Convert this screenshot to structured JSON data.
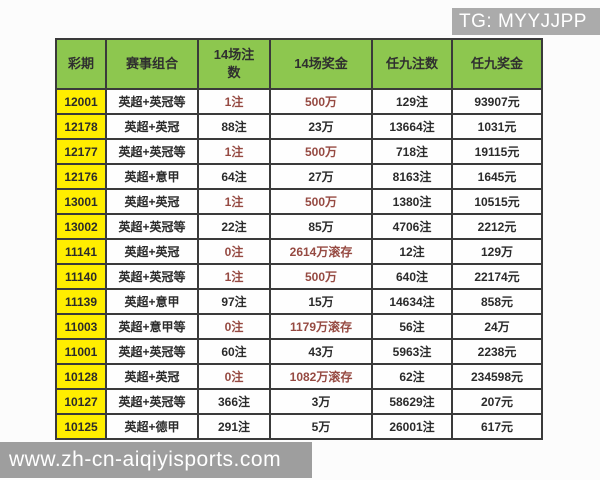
{
  "badge": {
    "text": "TG: MYYJJPP"
  },
  "watermark": {
    "text": "www.zh-cn-aiqiyisports.com"
  },
  "colors": {
    "green": "#8dc74f",
    "yellow": "#ffee00",
    "red": "#964a42",
    "ink": "#2b2b2b",
    "grid": "#3a3a3a",
    "badge": "#ababab",
    "bar": "#9e9e9e",
    "paper": "#fcfcfc"
  },
  "table": {
    "headers": [
      "彩期",
      "赛事组合",
      "14场注数",
      "14场奖金",
      "任九注数",
      "任九奖金"
    ],
    "rows": [
      {
        "period": "12001",
        "combo": "英超+英冠等",
        "n14": "1注",
        "p14": "500万",
        "n9": "129注",
        "p9": "93907元",
        "red": true
      },
      {
        "period": "12178",
        "combo": "英超+英冠",
        "n14": "88注",
        "p14": "23万",
        "n9": "13664注",
        "p9": "1031元",
        "red": false
      },
      {
        "period": "12177",
        "combo": "英超+英冠等",
        "n14": "1注",
        "p14": "500万",
        "n9": "718注",
        "p9": "19115元",
        "red": true
      },
      {
        "period": "12176",
        "combo": "英超+意甲",
        "n14": "64注",
        "p14": "27万",
        "n9": "8163注",
        "p9": "1645元",
        "red": false
      },
      {
        "period": "13001",
        "combo": "英超+英冠",
        "n14": "1注",
        "p14": "500万",
        "n9": "1380注",
        "p9": "10515元",
        "red": true
      },
      {
        "period": "13002",
        "combo": "英超+英冠等",
        "n14": "22注",
        "p14": "85万",
        "n9": "4706注",
        "p9": "2212元",
        "red": false
      },
      {
        "period": "11141",
        "combo": "英超+英冠",
        "n14": "0注",
        "p14": "2614万滚存",
        "n9": "12注",
        "p9": "129万",
        "red": true
      },
      {
        "period": "11140",
        "combo": "英超+英冠等",
        "n14": "1注",
        "p14": "500万",
        "n9": "640注",
        "p9": "22174元",
        "red": true
      },
      {
        "period": "11139",
        "combo": "英超+意甲",
        "n14": "97注",
        "p14": "15万",
        "n9": "14634注",
        "p9": "858元",
        "red": false
      },
      {
        "period": "11003",
        "combo": "英超+意甲等",
        "n14": "0注",
        "p14": "1179万滚存",
        "n9": "56注",
        "p9": "24万",
        "red": true
      },
      {
        "period": "11001",
        "combo": "英超+英冠等",
        "n14": "60注",
        "p14": "43万",
        "n9": "5963注",
        "p9": "2238元",
        "red": false
      },
      {
        "period": "10128",
        "combo": "英超+英冠",
        "n14": "0注",
        "p14": "1082万滚存",
        "n9": "62注",
        "p9": "234598元",
        "red": true
      },
      {
        "period": "10127",
        "combo": "英超+英冠等",
        "n14": "366注",
        "p14": "3万",
        "n9": "58629注",
        "p9": "207元",
        "red": false
      },
      {
        "period": "10125",
        "combo": "英超+德甲",
        "n14": "291注",
        "p14": "5万",
        "n9": "26001注",
        "p9": "617元",
        "red": false
      }
    ]
  }
}
